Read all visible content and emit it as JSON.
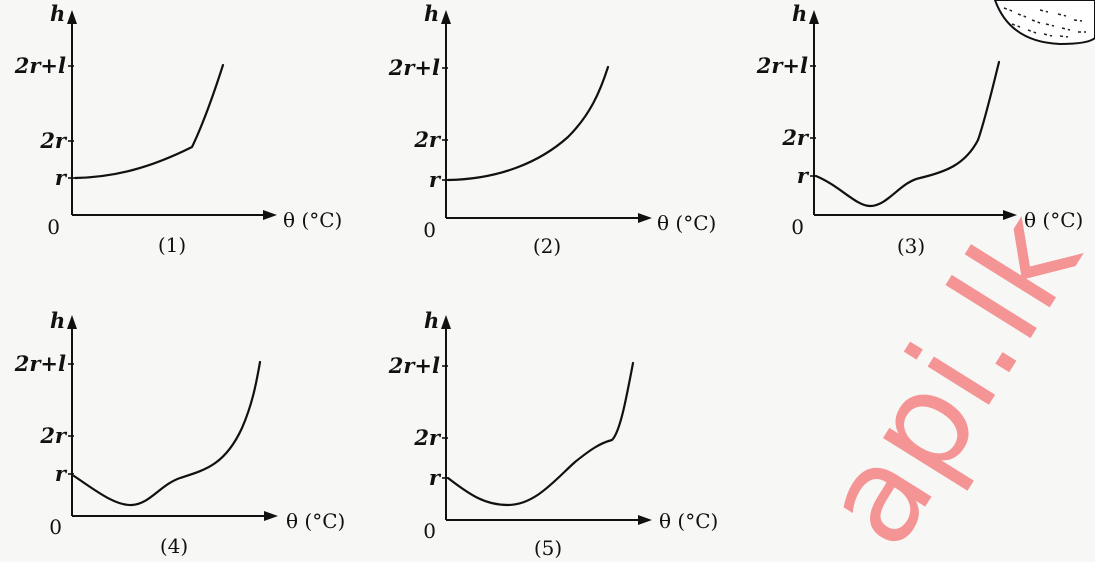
{
  "graphs": [
    {
      "caption": "(1)",
      "h_label": "h",
      "y_ticks": [
        "2r+l",
        "2r",
        "r"
      ],
      "origin": "0",
      "x_label": "θ (°C)"
    },
    {
      "caption": "(2)",
      "h_label": "h",
      "y_ticks": [
        "2r+l",
        "2r",
        "r"
      ],
      "origin": "0",
      "x_label": "θ (°C)"
    },
    {
      "caption": "(3)",
      "h_label": "h",
      "y_ticks": [
        "2r+l",
        "2r",
        "r"
      ],
      "origin": "0",
      "x_label": "θ (°C)"
    },
    {
      "caption": "(4)",
      "h_label": "h",
      "y_ticks": [
        "2r+l",
        "2r",
        "r"
      ],
      "origin": "0",
      "x_label": "θ (°C)"
    },
    {
      "caption": "(5)",
      "h_label": "h",
      "y_ticks": [
        "2r+l",
        "2r",
        "r"
      ],
      "origin": "0",
      "x_label": "θ (°C)"
    }
  ],
  "watermark": "api.lk"
}
